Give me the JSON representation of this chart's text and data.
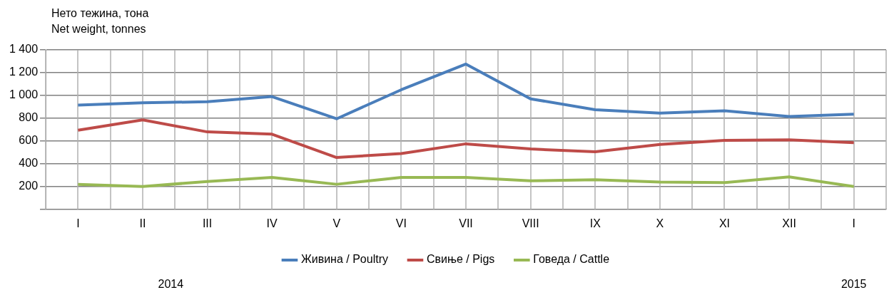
{
  "chart_data": {
    "type": "line",
    "ylabel": "Нето тежина, тона\nNet weight, tonnes",
    "categories": [
      "I",
      "II",
      "III",
      "IV",
      "V",
      "VI",
      "VII",
      "VIII",
      "IX",
      "X",
      "XI",
      "XII",
      "I"
    ],
    "series": [
      {
        "name": "Живина / Poultry",
        "color": "#4a7ebb",
        "values": [
          915,
          935,
          945,
          990,
          795,
          1050,
          1275,
          970,
          875,
          845,
          865,
          815,
          835
        ]
      },
      {
        "name": "Свиње / Pigs",
        "color": "#be4b48",
        "values": [
          695,
          785,
          680,
          660,
          455,
          490,
          575,
          530,
          505,
          570,
          605,
          610,
          585
        ]
      },
      {
        "name": "Говеда / Cattle",
        "color": "#98b954",
        "values": [
          220,
          200,
          245,
          280,
          220,
          280,
          280,
          250,
          260,
          240,
          235,
          285,
          200
        ]
      }
    ],
    "ylim": [
      0,
      1400
    ],
    "yticks": [
      {
        "value": 0,
        "label": null
      },
      200,
      400,
      600,
      800,
      {
        "value": 1000,
        "label": "1 000"
      },
      {
        "value": 1200,
        "label": "1 200"
      },
      {
        "value": 1400,
        "label": "1 400"
      }
    ],
    "grid": true,
    "legend": "bottom",
    "marker": "none",
    "line_style": "solid",
    "annotations": [
      "2014",
      "2015"
    ]
  }
}
